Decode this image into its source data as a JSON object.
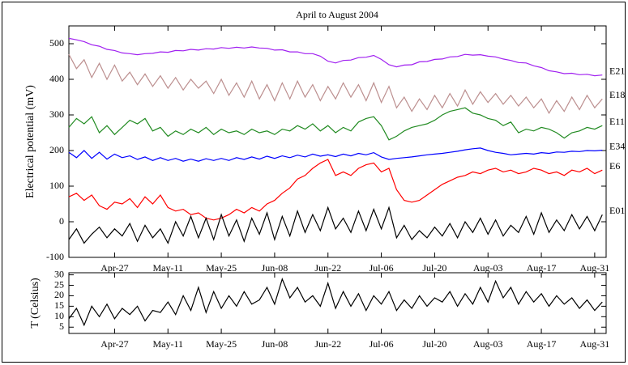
{
  "chart_data": [
    {
      "type": "line",
      "title": "April to August 2004",
      "y_label": "Electrical potential (mV)",
      "xlim": [
        "2004-04-15",
        "2004-09-03"
      ],
      "xticks": [
        {
          "value": "2004-04-27",
          "label": "Apr-27"
        },
        {
          "value": "2004-05-11",
          "label": "May-11"
        },
        {
          "value": "2004-05-25",
          "label": "May-25"
        },
        {
          "value": "2004-06-08",
          "label": "Jun-08"
        },
        {
          "value": "2004-06-22",
          "label": "Jun-22"
        },
        {
          "value": "2004-07-06",
          "label": "Jul-06"
        },
        {
          "value": "2004-07-20",
          "label": "Jul-20"
        },
        {
          "value": "2004-08-03",
          "label": "Aug-03"
        },
        {
          "value": "2004-08-17",
          "label": "Aug-17"
        },
        {
          "value": "2004-08-31",
          "label": "Aug-31"
        }
      ],
      "ylim": [
        -100,
        550
      ],
      "yticks": [
        -100,
        0,
        100,
        200,
        300,
        400,
        500
      ],
      "x": [
        "2004-04-15",
        "2004-04-17",
        "2004-04-19",
        "2004-04-21",
        "2004-04-23",
        "2004-04-25",
        "2004-04-27",
        "2004-04-29",
        "2004-05-01",
        "2004-05-03",
        "2004-05-05",
        "2004-05-07",
        "2004-05-09",
        "2004-05-11",
        "2004-05-13",
        "2004-05-15",
        "2004-05-17",
        "2004-05-19",
        "2004-05-21",
        "2004-05-23",
        "2004-05-25",
        "2004-05-27",
        "2004-05-29",
        "2004-05-31",
        "2004-06-02",
        "2004-06-04",
        "2004-06-06",
        "2004-06-08",
        "2004-06-10",
        "2004-06-12",
        "2004-06-14",
        "2004-06-16",
        "2004-06-18",
        "2004-06-20",
        "2004-06-22",
        "2004-06-24",
        "2004-06-26",
        "2004-06-28",
        "2004-06-30",
        "2004-07-02",
        "2004-07-04",
        "2004-07-06",
        "2004-07-08",
        "2004-07-10",
        "2004-07-12",
        "2004-07-14",
        "2004-07-16",
        "2004-07-18",
        "2004-07-20",
        "2004-07-22",
        "2004-07-24",
        "2004-07-26",
        "2004-07-28",
        "2004-07-30",
        "2004-08-01",
        "2004-08-03",
        "2004-08-05",
        "2004-08-07",
        "2004-08-09",
        "2004-08-11",
        "2004-08-13",
        "2004-08-15",
        "2004-08-17",
        "2004-08-19",
        "2004-08-21",
        "2004-08-23",
        "2004-08-25",
        "2004-08-27",
        "2004-08-29",
        "2004-08-31",
        "2004-09-02"
      ],
      "series": [
        {
          "name": "E21",
          "color": "#a020f0",
          "values": [
            515,
            511,
            506,
            497,
            493,
            484,
            481,
            474,
            472,
            469,
            472,
            473,
            477,
            476,
            481,
            480,
            484,
            482,
            486,
            485,
            489,
            487,
            490,
            488,
            491,
            488,
            487,
            482,
            483,
            477,
            477,
            472,
            472,
            465,
            451,
            446,
            453,
            454,
            461,
            462,
            467,
            456,
            441,
            435,
            440,
            441,
            449,
            450,
            456,
            457,
            463,
            464,
            470,
            468,
            469,
            465,
            463,
            457,
            453,
            447,
            446,
            438,
            433,
            424,
            421,
            416,
            417,
            413,
            414,
            410,
            412
          ]
        },
        {
          "name": "E18",
          "color": "#bc8f8f",
          "values": [
            470,
            430,
            455,
            405,
            445,
            400,
            440,
            395,
            420,
            385,
            415,
            380,
            410,
            375,
            405,
            370,
            400,
            375,
            395,
            360,
            400,
            355,
            390,
            350,
            395,
            345,
            385,
            340,
            390,
            345,
            395,
            350,
            385,
            340,
            380,
            345,
            390,
            350,
            385,
            340,
            390,
            335,
            380,
            320,
            350,
            310,
            345,
            315,
            355,
            320,
            360,
            325,
            370,
            330,
            365,
            335,
            360,
            330,
            355,
            325,
            350,
            320,
            345,
            305,
            340,
            310,
            350,
            315,
            355,
            320,
            345
          ]
        },
        {
          "name": "E11",
          "color": "#228b22",
          "values": [
            265,
            290,
            275,
            295,
            250,
            270,
            245,
            265,
            285,
            275,
            290,
            255,
            265,
            240,
            255,
            245,
            260,
            250,
            265,
            245,
            260,
            250,
            255,
            245,
            260,
            250,
            255,
            245,
            260,
            255,
            270,
            260,
            275,
            255,
            270,
            250,
            265,
            255,
            280,
            290,
            295,
            270,
            230,
            240,
            255,
            265,
            270,
            275,
            285,
            300,
            310,
            315,
            320,
            305,
            300,
            290,
            285,
            270,
            280,
            250,
            260,
            255,
            265,
            260,
            250,
            235,
            250,
            255,
            265,
            260,
            270
          ]
        },
        {
          "name": "E34",
          "color": "#0000ff",
          "values": [
            195,
            180,
            200,
            178,
            195,
            176,
            190,
            180,
            185,
            175,
            182,
            172,
            180,
            172,
            178,
            170,
            176,
            170,
            177,
            172,
            178,
            172,
            180,
            175,
            182,
            176,
            184,
            178,
            185,
            180,
            187,
            182,
            190,
            184,
            188,
            183,
            190,
            185,
            192,
            188,
            194,
            182,
            175,
            178,
            180,
            182,
            185,
            188,
            190,
            192,
            195,
            198,
            202,
            205,
            207,
            200,
            195,
            192,
            188,
            190,
            192,
            190,
            194,
            192,
            196,
            195,
            198,
            197,
            200,
            199,
            201
          ]
        },
        {
          "name": "E6",
          "color": "#ff0000",
          "values": [
            70,
            80,
            60,
            75,
            45,
            35,
            55,
            50,
            65,
            40,
            70,
            50,
            75,
            40,
            30,
            35,
            20,
            25,
            10,
            5,
            10,
            20,
            35,
            25,
            40,
            30,
            50,
            60,
            80,
            95,
            120,
            130,
            150,
            165,
            175,
            130,
            140,
            130,
            150,
            160,
            165,
            140,
            150,
            90,
            60,
            55,
            60,
            75,
            90,
            105,
            115,
            125,
            130,
            140,
            135,
            145,
            150,
            140,
            145,
            135,
            140,
            150,
            145,
            135,
            140,
            130,
            145,
            140,
            150,
            135,
            145
          ]
        },
        {
          "name": "E01",
          "color": "#000000",
          "values": [
            -50,
            -20,
            -60,
            -35,
            -15,
            -45,
            -20,
            -40,
            -5,
            -55,
            -10,
            -45,
            -20,
            -60,
            0,
            -40,
            15,
            -45,
            10,
            -50,
            20,
            -40,
            5,
            -55,
            10,
            -35,
            25,
            -50,
            15,
            -40,
            30,
            -30,
            20,
            -25,
            40,
            -20,
            10,
            -30,
            30,
            -25,
            35,
            -20,
            40,
            -45,
            -10,
            -50,
            -25,
            -45,
            -15,
            -40,
            -5,
            -45,
            0,
            -30,
            10,
            -35,
            5,
            -40,
            -10,
            -30,
            15,
            -35,
            25,
            -30,
            5,
            -25,
            20,
            -20,
            15,
            -25,
            20
          ]
        }
      ]
    },
    {
      "type": "line",
      "y_label": "T (Celsius)",
      "xlim": [
        "2004-04-15",
        "2004-09-03"
      ],
      "xticks": [
        {
          "value": "2004-04-27",
          "label": "Apr-27"
        },
        {
          "value": "2004-05-11",
          "label": "May-11"
        },
        {
          "value": "2004-05-25",
          "label": "May-25"
        },
        {
          "value": "2004-06-08",
          "label": "Jun-08"
        },
        {
          "value": "2004-06-22",
          "label": "Jun-22"
        },
        {
          "value": "2004-07-06",
          "label": "Jul-06"
        },
        {
          "value": "2004-07-20",
          "label": "Jul-20"
        },
        {
          "value": "2004-08-03",
          "label": "Aug-03"
        },
        {
          "value": "2004-08-17",
          "label": "Aug-17"
        },
        {
          "value": "2004-08-31",
          "label": "Aug-31"
        }
      ],
      "ylim": [
        2,
        31
      ],
      "yticks": [
        5,
        10,
        15,
        20,
        25,
        30
      ],
      "x": [
        "2004-04-15",
        "2004-04-17",
        "2004-04-19",
        "2004-04-21",
        "2004-04-23",
        "2004-04-25",
        "2004-04-27",
        "2004-04-29",
        "2004-05-01",
        "2004-05-03",
        "2004-05-05",
        "2004-05-07",
        "2004-05-09",
        "2004-05-11",
        "2004-05-13",
        "2004-05-15",
        "2004-05-17",
        "2004-05-19",
        "2004-05-21",
        "2004-05-23",
        "2004-05-25",
        "2004-05-27",
        "2004-05-29",
        "2004-05-31",
        "2004-06-02",
        "2004-06-04",
        "2004-06-06",
        "2004-06-08",
        "2004-06-10",
        "2004-06-12",
        "2004-06-14",
        "2004-06-16",
        "2004-06-18",
        "2004-06-20",
        "2004-06-22",
        "2004-06-24",
        "2004-06-26",
        "2004-06-28",
        "2004-06-30",
        "2004-07-02",
        "2004-07-04",
        "2004-07-06",
        "2004-07-08",
        "2004-07-10",
        "2004-07-12",
        "2004-07-14",
        "2004-07-16",
        "2004-07-18",
        "2004-07-20",
        "2004-07-22",
        "2004-07-24",
        "2004-07-26",
        "2004-07-28",
        "2004-07-30",
        "2004-08-01",
        "2004-08-03",
        "2004-08-05",
        "2004-08-07",
        "2004-08-09",
        "2004-08-11",
        "2004-08-13",
        "2004-08-15",
        "2004-08-17",
        "2004-08-19",
        "2004-08-21",
        "2004-08-23",
        "2004-08-25",
        "2004-08-27",
        "2004-08-29",
        "2004-08-31",
        "2004-09-02"
      ],
      "color": "#000000",
      "values": [
        9,
        14,
        6,
        15,
        10,
        16,
        9,
        14,
        11,
        15,
        8,
        13,
        12,
        17,
        11,
        20,
        13,
        24,
        12,
        22,
        14,
        20,
        15,
        22,
        16,
        18,
        24,
        16,
        28,
        19,
        24,
        17,
        20,
        15,
        26,
        14,
        22,
        15,
        21,
        13,
        20,
        16,
        22,
        13,
        18,
        14,
        20,
        15,
        19,
        17,
        22,
        15,
        21,
        16,
        24,
        17,
        27,
        19,
        24,
        16,
        22,
        17,
        21,
        15,
        20,
        16,
        19,
        14,
        18,
        13,
        17
      ]
    }
  ]
}
